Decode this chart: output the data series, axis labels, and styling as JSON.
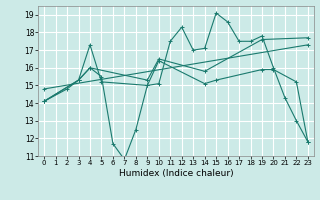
{
  "background_color": "#cceae7",
  "grid_color": "#ffffff",
  "line_color": "#1a7a6e",
  "xlabel": "Humidex (Indice chaleur)",
  "xlim": [
    -0.5,
    23.5
  ],
  "ylim": [
    11,
    19.5
  ],
  "yticks": [
    11,
    12,
    13,
    14,
    15,
    16,
    17,
    18,
    19
  ],
  "xticks": [
    0,
    1,
    2,
    3,
    4,
    5,
    6,
    7,
    8,
    9,
    10,
    11,
    12,
    13,
    14,
    15,
    16,
    17,
    18,
    19,
    20,
    21,
    22,
    23
  ],
  "lines": [
    {
      "x": [
        0,
        2,
        3,
        4,
        5,
        6,
        7,
        8,
        9,
        10,
        11,
        12,
        13,
        14,
        15,
        16,
        17,
        18,
        19,
        20,
        21,
        22,
        23
      ],
      "y": [
        14.1,
        14.8,
        15.3,
        16.0,
        15.5,
        11.7,
        10.8,
        12.5,
        15.0,
        15.1,
        17.5,
        18.3,
        17.0,
        17.1,
        19.1,
        18.6,
        17.5,
        17.5,
        17.8,
        16.0,
        14.3,
        13.0,
        11.8
      ]
    },
    {
      "x": [
        0,
        3,
        4,
        5,
        9,
        10,
        14,
        15,
        19,
        20,
        22,
        23
      ],
      "y": [
        14.1,
        15.3,
        17.3,
        15.2,
        15.0,
        16.4,
        15.1,
        15.3,
        15.9,
        15.9,
        15.2,
        11.8
      ]
    },
    {
      "x": [
        0,
        3,
        4,
        9,
        10,
        14,
        19,
        23
      ],
      "y": [
        14.1,
        15.3,
        16.0,
        15.3,
        16.5,
        15.8,
        17.6,
        17.7
      ]
    },
    {
      "x": [
        0,
        23
      ],
      "y": [
        14.8,
        17.3
      ]
    }
  ]
}
